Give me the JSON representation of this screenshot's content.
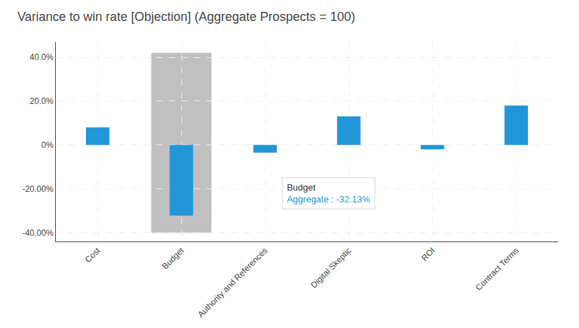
{
  "chart_data": {
    "type": "bar",
    "title": "Variance to win rate [Objection] (Aggregate Prospects = 100)",
    "categories": [
      "Cost",
      "Budget",
      "Authority and References",
      "Digital Skeptic",
      "ROI",
      "Contract Terms"
    ],
    "values": [
      8.0,
      -32.13,
      -3.5,
      13.0,
      -2.0,
      18.0
    ],
    "color": "#2196d9",
    "background_bar": {
      "category": "Budget",
      "bottom": -40.0,
      "top": 42.0,
      "color": "#c0c0c0"
    },
    "ylim": [
      -44,
      47
    ],
    "yticks": [
      {
        "value": -40,
        "label": "-40.00%"
      },
      {
        "value": -20,
        "label": "-20.00%"
      },
      {
        "value": 0,
        "label": "0%"
      },
      {
        "value": 20,
        "label": "20.0%"
      },
      {
        "value": 40,
        "label": "40.0%"
      }
    ],
    "grid": true,
    "annotations": [
      {
        "text": "Budget",
        "color": "#333333"
      },
      {
        "text": "Aggregate : -32.13%",
        "color": "#2196d9"
      }
    ]
  }
}
